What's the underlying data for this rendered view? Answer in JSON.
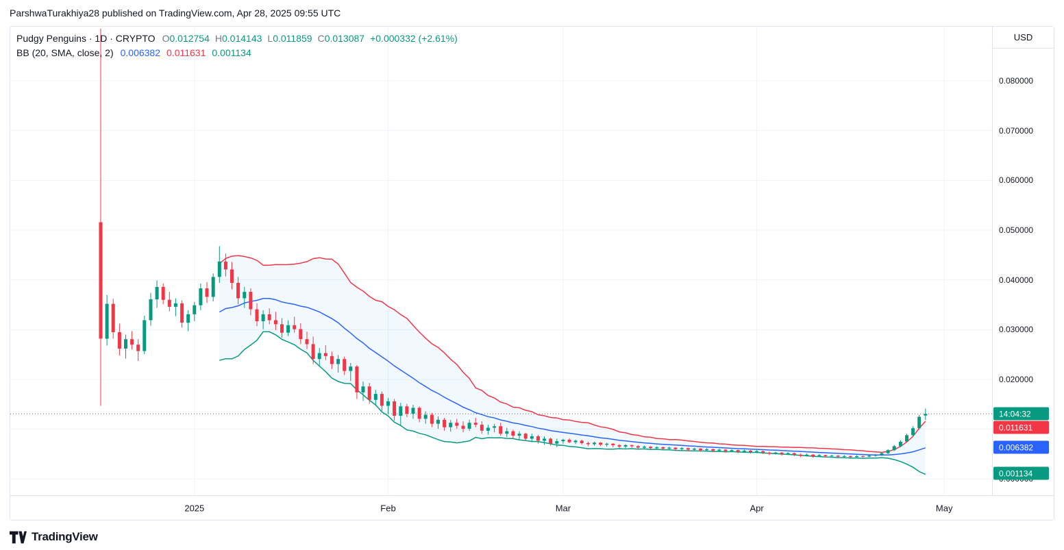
{
  "header": {
    "byline": "ParshwaTurakhiya28 published on TradingView.com, Apr 28, 2025 09:55 UTC"
  },
  "legend": {
    "title": "Pudgy Penguins · 1D · CRYPTO",
    "o_label": "O",
    "o": "0.012754",
    "h_label": "H",
    "h": "0.014143",
    "l_label": "L",
    "l": "0.011859",
    "c_label": "C",
    "c": "0.013087",
    "change": "+0.000332 (+2.61%)",
    "indicator_name": "BB (20, SMA, close, 2)",
    "bb_basis": "0.006382",
    "bb_upper": "0.011631",
    "bb_lower": "0.001134"
  },
  "price_axis": {
    "currency": "USD",
    "labels": [
      {
        "text": "0.080000",
        "price": 0.08
      },
      {
        "text": "0.070000",
        "price": 0.07
      },
      {
        "text": "0.060000",
        "price": 0.06
      },
      {
        "text": "0.050000",
        "price": 0.05
      },
      {
        "text": "0.040000",
        "price": 0.04
      },
      {
        "text": "0.030000",
        "price": 0.03
      },
      {
        "text": "0.020000",
        "price": 0.02
      },
      {
        "text": "0.000000",
        "price": 0.0
      }
    ],
    "badges": [
      {
        "name": "countdown-badge",
        "text": "14:04:32",
        "price": 0.013087,
        "color": "#089981"
      },
      {
        "name": "bb-upper-badge",
        "text": "0.011631",
        "price": 0.011631,
        "color": "#f23645"
      },
      {
        "name": "bb-basis-badge",
        "text": "0.006382",
        "price": 0.006382,
        "color": "#2962ff"
      },
      {
        "name": "bb-lower-badge",
        "text": "0.001134",
        "price": 0.001134,
        "color": "#089981"
      }
    ]
  },
  "time_axis": {
    "labels": [
      {
        "text": "2025",
        "day": 15
      },
      {
        "text": "Feb",
        "day": 46
      },
      {
        "text": "Mar",
        "day": 74
      },
      {
        "text": "Apr",
        "day": 105
      },
      {
        "text": "May",
        "day": 135
      }
    ]
  },
  "footer": {
    "brand": "TradingView"
  },
  "chart_data": {
    "type": "candlestick",
    "title": "Pudgy Penguins · 1D · CRYPTO",
    "interval": "1D",
    "currency": "USD",
    "last_bar": {
      "open": 0.012754,
      "high": 0.014143,
      "low": 0.011859,
      "close": 0.013087,
      "change": "+0.000332 (+2.61%)"
    },
    "indicator": {
      "name": "BB",
      "length": 20,
      "source": "close",
      "stdev_mult": 2,
      "last": {
        "basis": 0.006382,
        "upper": 0.011631,
        "lower": 0.001134
      }
    },
    "current_price": 0.013087,
    "countdown": "14:04:32",
    "y_axis": {
      "ticks": [
        0.08,
        0.07,
        0.06,
        0.05,
        0.04,
        0.03,
        0.02,
        0.01,
        0.0
      ],
      "format": "0.000000"
    },
    "x_axis": {
      "labels": [
        "2025",
        "Feb",
        "Mar",
        "Apr",
        "May"
      ]
    },
    "colors": {
      "up": "#089981",
      "down": "#f23645",
      "bb_upper": "#f23645",
      "bb_basis": "#2962ff",
      "bb_lower": "#089981",
      "bb_fill": "rgba(33,150,243,0.06)",
      "grid": "#f0f3fa",
      "axis_text": "#131722",
      "border": "#e0e3eb"
    },
    "candles": {
      "start_date": "2024-12-17",
      "interval_days": 1,
      "ohlc": [
        [
          0.0516,
          0.0905,
          0.0147,
          0.0282
        ],
        [
          0.0282,
          0.037,
          0.0268,
          0.0352
        ],
        [
          0.0352,
          0.0362,
          0.0282,
          0.0295
        ],
        [
          0.0295,
          0.0312,
          0.0248,
          0.0262
        ],
        [
          0.0262,
          0.029,
          0.0242,
          0.0281
        ],
        [
          0.0281,
          0.0297,
          0.026,
          0.027
        ],
        [
          0.027,
          0.0281,
          0.0237,
          0.0257
        ],
        [
          0.0257,
          0.0328,
          0.0251,
          0.0319
        ],
        [
          0.0319,
          0.0374,
          0.0308,
          0.0361
        ],
        [
          0.0361,
          0.0399,
          0.0344,
          0.0386
        ],
        [
          0.0386,
          0.0393,
          0.0351,
          0.036
        ],
        [
          0.036,
          0.0376,
          0.0337,
          0.0346
        ],
        [
          0.0346,
          0.0363,
          0.0327,
          0.0353
        ],
        [
          0.0353,
          0.0359,
          0.0304,
          0.0314
        ],
        [
          0.0314,
          0.0339,
          0.0297,
          0.0331
        ],
        [
          0.0331,
          0.0356,
          0.0317,
          0.0349
        ],
        [
          0.0349,
          0.0393,
          0.0339,
          0.0383
        ],
        [
          0.0383,
          0.0396,
          0.0354,
          0.0366
        ],
        [
          0.0366,
          0.0413,
          0.0357,
          0.0406
        ],
        [
          0.0406,
          0.0468,
          0.0394,
          0.0437
        ],
        [
          0.0437,
          0.0453,
          0.0407,
          0.0421
        ],
        [
          0.0421,
          0.0436,
          0.0381,
          0.0394
        ],
        [
          0.0394,
          0.0406,
          0.0351,
          0.0363
        ],
        [
          0.0363,
          0.0386,
          0.0344,
          0.0376
        ],
        [
          0.0376,
          0.0383,
          0.0329,
          0.0341
        ],
        [
          0.0341,
          0.0353,
          0.0307,
          0.0317
        ],
        [
          0.0317,
          0.0339,
          0.0301,
          0.0331
        ],
        [
          0.0331,
          0.0343,
          0.0311,
          0.0319
        ],
        [
          0.0319,
          0.0336,
          0.0299,
          0.0311
        ],
        [
          0.0311,
          0.0323,
          0.0284,
          0.0294
        ],
        [
          0.0294,
          0.0319,
          0.0287,
          0.0309
        ],
        [
          0.0309,
          0.0326,
          0.0294,
          0.0301
        ],
        [
          0.0301,
          0.0313,
          0.0271,
          0.0281
        ],
        [
          0.0281,
          0.0296,
          0.0261,
          0.0271
        ],
        [
          0.0271,
          0.0286,
          0.0231,
          0.0241
        ],
        [
          0.0241,
          0.0263,
          0.0227,
          0.0253
        ],
        [
          0.0253,
          0.0269,
          0.0239,
          0.0247
        ],
        [
          0.0247,
          0.0256,
          0.0221,
          0.0231
        ],
        [
          0.0231,
          0.0249,
          0.0214,
          0.0241
        ],
        [
          0.0241,
          0.0246,
          0.0209,
          0.0217
        ],
        [
          0.0217,
          0.0233,
          0.0197,
          0.0226
        ],
        [
          0.0226,
          0.0229,
          0.0161,
          0.0174
        ],
        [
          0.0174,
          0.0196,
          0.0157,
          0.0186
        ],
        [
          0.0186,
          0.0193,
          0.0151,
          0.0159
        ],
        [
          0.0159,
          0.0179,
          0.0147,
          0.0171
        ],
        [
          0.0171,
          0.0176,
          0.0137,
          0.0147
        ],
        [
          0.0147,
          0.0163,
          0.0131,
          0.0156
        ],
        [
          0.0156,
          0.0161,
          0.0117,
          0.0127
        ],
        [
          0.0127,
          0.0153,
          0.0107,
          0.0146
        ],
        [
          0.0146,
          0.0151,
          0.0124,
          0.0131
        ],
        [
          0.0131,
          0.0149,
          0.0121,
          0.0143
        ],
        [
          0.0143,
          0.0146,
          0.0114,
          0.0121
        ],
        [
          0.0121,
          0.0136,
          0.0111,
          0.0129
        ],
        [
          0.0129,
          0.0133,
          0.0104,
          0.0111
        ],
        [
          0.0111,
          0.0126,
          0.0101,
          0.0119
        ],
        [
          0.0119,
          0.0123,
          0.0097,
          0.0104
        ],
        [
          0.0104,
          0.0119,
          0.0095,
          0.0113
        ],
        [
          0.0113,
          0.0121,
          0.0101,
          0.0107
        ],
        [
          0.0107,
          0.0116,
          0.0094,
          0.0101
        ],
        [
          0.0101,
          0.0119,
          0.0097,
          0.0113
        ],
        [
          0.0113,
          0.0123,
          0.0104,
          0.0109
        ],
        [
          0.0109,
          0.0116,
          0.0091,
          0.0097
        ],
        [
          0.0097,
          0.0109,
          0.0089,
          0.0103
        ],
        [
          0.0103,
          0.0111,
          0.0094,
          0.0106
        ],
        [
          0.0106,
          0.0113,
          0.0087,
          0.0091
        ],
        [
          0.0091,
          0.0103,
          0.0084,
          0.0096
        ],
        [
          0.0096,
          0.0099,
          0.0081,
          0.0087
        ],
        [
          0.0087,
          0.0096,
          0.0079,
          0.0091
        ],
        [
          0.0091,
          0.0093,
          0.0077,
          0.0081
        ],
        [
          0.0081,
          0.0091,
          0.0074,
          0.0086
        ],
        [
          0.0086,
          0.0089,
          0.0071,
          0.0077
        ],
        [
          0.0077,
          0.0086,
          0.0069,
          0.0081
        ],
        [
          0.0081,
          0.0083,
          0.0067,
          0.0071
        ],
        [
          0.0071,
          0.0081,
          0.0064,
          0.0076
        ],
        [
          0.0076,
          0.0081,
          0.0071,
          0.0079
        ],
        [
          0.0079,
          0.0082,
          0.0072,
          0.0074
        ],
        [
          0.0074,
          0.0079,
          0.007,
          0.0077
        ],
        [
          0.0077,
          0.0079,
          0.0069,
          0.0072
        ],
        [
          0.0072,
          0.0075,
          0.0066,
          0.007
        ],
        [
          0.007,
          0.0075,
          0.0067,
          0.0073
        ],
        [
          0.0073,
          0.0074,
          0.0066,
          0.0069
        ],
        [
          0.0069,
          0.0073,
          0.0065,
          0.0071
        ],
        [
          0.0071,
          0.0072,
          0.0064,
          0.0068
        ],
        [
          0.0068,
          0.007,
          0.0062,
          0.0065
        ],
        [
          0.0065,
          0.007,
          0.0062,
          0.0068
        ],
        [
          0.0068,
          0.0069,
          0.0063,
          0.0066
        ],
        [
          0.0066,
          0.0068,
          0.006,
          0.0063
        ],
        [
          0.0063,
          0.0067,
          0.0061,
          0.0065
        ],
        [
          0.0065,
          0.0066,
          0.0059,
          0.0062
        ],
        [
          0.0062,
          0.0066,
          0.006,
          0.0064
        ],
        [
          0.0064,
          0.0065,
          0.0058,
          0.0061
        ],
        [
          0.0061,
          0.0065,
          0.0059,
          0.0063
        ],
        [
          0.0063,
          0.0064,
          0.0057,
          0.006
        ],
        [
          0.006,
          0.0064,
          0.0058,
          0.0062
        ],
        [
          0.0062,
          0.0063,
          0.0056,
          0.0059
        ],
        [
          0.0059,
          0.0063,
          0.0057,
          0.0061
        ],
        [
          0.0061,
          0.0062,
          0.0055,
          0.0058
        ],
        [
          0.0058,
          0.0062,
          0.0056,
          0.006
        ],
        [
          0.006,
          0.0061,
          0.0054,
          0.0057
        ],
        [
          0.0057,
          0.0061,
          0.0055,
          0.0059
        ],
        [
          0.0059,
          0.006,
          0.0053,
          0.0056
        ],
        [
          0.0056,
          0.006,
          0.0054,
          0.0058
        ],
        [
          0.0058,
          0.0059,
          0.0052,
          0.0055
        ],
        [
          0.0055,
          0.0059,
          0.0053,
          0.0057
        ],
        [
          0.0057,
          0.0058,
          0.0051,
          0.0054
        ],
        [
          0.0054,
          0.0058,
          0.0052,
          0.0056
        ],
        [
          0.0056,
          0.0057,
          0.005,
          0.0053
        ],
        [
          0.0053,
          0.0055,
          0.0048,
          0.0051
        ],
        [
          0.0051,
          0.0055,
          0.0049,
          0.0053
        ],
        [
          0.0053,
          0.0054,
          0.0047,
          0.005
        ],
        [
          0.005,
          0.0054,
          0.0048,
          0.0052
        ],
        [
          0.0052,
          0.0053,
          0.0046,
          0.0049
        ],
        [
          0.0049,
          0.0051,
          0.0044,
          0.0047
        ],
        [
          0.0047,
          0.0051,
          0.0045,
          0.0049
        ],
        [
          0.0049,
          0.005,
          0.0043,
          0.0046
        ],
        [
          0.0046,
          0.005,
          0.0044,
          0.0048
        ],
        [
          0.0048,
          0.0049,
          0.0043,
          0.0046
        ],
        [
          0.0046,
          0.0049,
          0.0044,
          0.0047
        ],
        [
          0.0047,
          0.0048,
          0.0042,
          0.0045
        ],
        [
          0.0045,
          0.0048,
          0.0043,
          0.0046
        ],
        [
          0.0046,
          0.0047,
          0.0041,
          0.0044
        ],
        [
          0.0044,
          0.0048,
          0.0042,
          0.0046
        ],
        [
          0.0046,
          0.0047,
          0.0043,
          0.0045
        ],
        [
          0.0045,
          0.0049,
          0.0044,
          0.0047
        ],
        [
          0.0047,
          0.005,
          0.0045,
          0.0048
        ],
        [
          0.0048,
          0.0054,
          0.0046,
          0.0052
        ],
        [
          0.0052,
          0.006,
          0.005,
          0.0058
        ],
        [
          0.0058,
          0.0068,
          0.0056,
          0.0066
        ],
        [
          0.0066,
          0.0078,
          0.0064,
          0.0075
        ],
        [
          0.0075,
          0.0091,
          0.0073,
          0.0088
        ],
        [
          0.0088,
          0.0106,
          0.0086,
          0.0102
        ],
        [
          0.0102,
          0.0129,
          0.0099,
          0.0125
        ],
        [
          0.012754,
          0.014143,
          0.011859,
          0.013087
        ]
      ]
    }
  }
}
